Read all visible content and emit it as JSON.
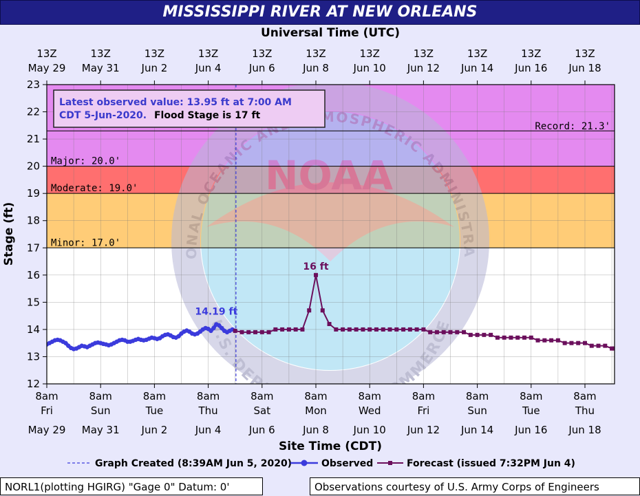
{
  "chart_data": {
    "type": "line",
    "title": "MISSISSIPPI RIVER AT NEW ORLEANS",
    "top_axis_title": "Universal Time (UTC)",
    "top_ticks": [
      {
        "hour": "13Z",
        "date": "May 29"
      },
      {
        "hour": "13Z",
        "date": "May 31"
      },
      {
        "hour": "13Z",
        "date": "Jun  2"
      },
      {
        "hour": "13Z",
        "date": "Jun  4"
      },
      {
        "hour": "13Z",
        "date": "Jun  6"
      },
      {
        "hour": "13Z",
        "date": "Jun  8"
      },
      {
        "hour": "13Z",
        "date": "Jun 10"
      },
      {
        "hour": "13Z",
        "date": "Jun 12"
      },
      {
        "hour": "13Z",
        "date": "Jun 14"
      },
      {
        "hour": "13Z",
        "date": "Jun 16"
      },
      {
        "hour": "13Z",
        "date": "Jun 18"
      }
    ],
    "bottom_ticks": [
      {
        "time": "8am",
        "day": "Fri",
        "date": "May 29"
      },
      {
        "time": "8am",
        "day": "Sun",
        "date": "May 31"
      },
      {
        "time": "8am",
        "day": "Tue",
        "date": "Jun  2"
      },
      {
        "time": "8am",
        "day": "Thu",
        "date": "Jun  4"
      },
      {
        "time": "8am",
        "day": "Sat",
        "date": "Jun  6"
      },
      {
        "time": "8am",
        "day": "Mon",
        "date": "Jun  8"
      },
      {
        "time": "8am",
        "day": "Wed",
        "date": "Jun 10"
      },
      {
        "time": "8am",
        "day": "Fri",
        "date": "Jun 12"
      },
      {
        "time": "8am",
        "day": "Sun",
        "date": "Jun 14"
      },
      {
        "time": "8am",
        "day": "Tue",
        "date": "Jun 16"
      },
      {
        "time": "8am",
        "day": "Thu",
        "date": "Jun 18"
      }
    ],
    "xlabel": "Site Time (CDT)",
    "ylabel": "Stage (ft)",
    "ylim": [
      12,
      23
    ],
    "yticks": [
      12,
      13,
      14,
      15,
      16,
      17,
      18,
      19,
      20,
      21,
      22,
      23
    ],
    "xlim_days": [
      0,
      21.1
    ],
    "grid": true,
    "flood_categories": [
      {
        "name": "Minor",
        "label": "Minor: 17.0'",
        "from": 17,
        "to": 19,
        "color": "#ffcc77"
      },
      {
        "name": "Moderate",
        "label": "Moderate: 19.0'",
        "from": 19,
        "to": 20,
        "color": "#ff6f6f"
      },
      {
        "name": "Major",
        "label": "Major: 20.0'",
        "from": 20,
        "to": 23,
        "color": "#e48af0"
      }
    ],
    "record": {
      "label": "Record: 21.3'",
      "value": 21.3
    },
    "graph_created_day": 7.03,
    "observed_peak_label": "14.19 ft",
    "observed_peak": {
      "day": 6.3,
      "value": 14.19
    },
    "forecast_peak_label": "16 ft",
    "forecast_peak": {
      "day": 10.0,
      "value": 16.0
    },
    "series": [
      {
        "name": "Observed",
        "color": "#3b3bdc",
        "points": [
          [
            0.0,
            13.45
          ],
          [
            0.1,
            13.5
          ],
          [
            0.2,
            13.55
          ],
          [
            0.3,
            13.6
          ],
          [
            0.4,
            13.62
          ],
          [
            0.5,
            13.6
          ],
          [
            0.6,
            13.55
          ],
          [
            0.7,
            13.5
          ],
          [
            0.8,
            13.4
          ],
          [
            0.9,
            13.32
          ],
          [
            1.0,
            13.28
          ],
          [
            1.1,
            13.3
          ],
          [
            1.2,
            13.35
          ],
          [
            1.3,
            13.4
          ],
          [
            1.4,
            13.38
          ],
          [
            1.5,
            13.35
          ],
          [
            1.6,
            13.4
          ],
          [
            1.7,
            13.45
          ],
          [
            1.8,
            13.5
          ],
          [
            1.9,
            13.52
          ],
          [
            2.0,
            13.5
          ],
          [
            2.1,
            13.47
          ],
          [
            2.2,
            13.45
          ],
          [
            2.3,
            13.42
          ],
          [
            2.4,
            13.45
          ],
          [
            2.5,
            13.5
          ],
          [
            2.6,
            13.55
          ],
          [
            2.7,
            13.6
          ],
          [
            2.8,
            13.62
          ],
          [
            2.9,
            13.6
          ],
          [
            3.0,
            13.55
          ],
          [
            3.1,
            13.55
          ],
          [
            3.2,
            13.58
          ],
          [
            3.3,
            13.62
          ],
          [
            3.4,
            13.65
          ],
          [
            3.5,
            13.62
          ],
          [
            3.6,
            13.6
          ],
          [
            3.7,
            13.62
          ],
          [
            3.8,
            13.66
          ],
          [
            3.9,
            13.7
          ],
          [
            4.0,
            13.68
          ],
          [
            4.1,
            13.65
          ],
          [
            4.2,
            13.68
          ],
          [
            4.3,
            13.75
          ],
          [
            4.4,
            13.8
          ],
          [
            4.5,
            13.82
          ],
          [
            4.6,
            13.78
          ],
          [
            4.7,
            13.72
          ],
          [
            4.8,
            13.7
          ],
          [
            4.9,
            13.75
          ],
          [
            5.0,
            13.85
          ],
          [
            5.1,
            13.92
          ],
          [
            5.2,
            13.96
          ],
          [
            5.3,
            13.92
          ],
          [
            5.4,
            13.85
          ],
          [
            5.5,
            13.82
          ],
          [
            5.6,
            13.85
          ],
          [
            5.7,
            13.92
          ],
          [
            5.8,
            14.0
          ],
          [
            5.9,
            14.05
          ],
          [
            6.0,
            14.02
          ],
          [
            6.1,
            13.95
          ],
          [
            6.2,
            14.05
          ],
          [
            6.3,
            14.19
          ],
          [
            6.4,
            14.15
          ],
          [
            6.5,
            14.05
          ],
          [
            6.6,
            13.95
          ],
          [
            6.7,
            13.9
          ],
          [
            6.8,
            13.95
          ],
          [
            6.9,
            14.0
          ],
          [
            7.0,
            13.95
          ]
        ]
      },
      {
        "name": "Forecast",
        "color": "#6b0f5c",
        "points": [
          [
            7.0,
            13.95
          ],
          [
            7.25,
            13.9
          ],
          [
            7.5,
            13.9
          ],
          [
            7.75,
            13.9
          ],
          [
            8.0,
            13.9
          ],
          [
            8.25,
            13.9
          ],
          [
            8.5,
            14.0
          ],
          [
            8.75,
            14.0
          ],
          [
            9.0,
            14.0
          ],
          [
            9.25,
            14.0
          ],
          [
            9.5,
            14.0
          ],
          [
            9.75,
            14.7
          ],
          [
            10.0,
            16.0
          ],
          [
            10.25,
            14.7
          ],
          [
            10.5,
            14.2
          ],
          [
            10.75,
            14.0
          ],
          [
            11.0,
            14.0
          ],
          [
            11.25,
            14.0
          ],
          [
            11.5,
            14.0
          ],
          [
            11.75,
            14.0
          ],
          [
            12.0,
            14.0
          ],
          [
            12.25,
            14.0
          ],
          [
            12.5,
            14.0
          ],
          [
            12.75,
            14.0
          ],
          [
            13.0,
            14.0
          ],
          [
            13.25,
            14.0
          ],
          [
            13.5,
            14.0
          ],
          [
            13.75,
            14.0
          ],
          [
            14.0,
            14.0
          ],
          [
            14.25,
            13.9
          ],
          [
            14.5,
            13.9
          ],
          [
            14.75,
            13.9
          ],
          [
            15.0,
            13.9
          ],
          [
            15.25,
            13.9
          ],
          [
            15.5,
            13.9
          ],
          [
            15.75,
            13.8
          ],
          [
            16.0,
            13.8
          ],
          [
            16.25,
            13.8
          ],
          [
            16.5,
            13.8
          ],
          [
            16.75,
            13.7
          ],
          [
            17.0,
            13.7
          ],
          [
            17.25,
            13.7
          ],
          [
            17.5,
            13.7
          ],
          [
            17.75,
            13.7
          ],
          [
            18.0,
            13.7
          ],
          [
            18.25,
            13.6
          ],
          [
            18.5,
            13.6
          ],
          [
            18.75,
            13.6
          ],
          [
            19.0,
            13.6
          ],
          [
            19.25,
            13.5
          ],
          [
            19.5,
            13.5
          ],
          [
            19.75,
            13.5
          ],
          [
            20.0,
            13.5
          ],
          [
            20.25,
            13.4
          ],
          [
            20.5,
            13.4
          ],
          [
            20.75,
            13.4
          ],
          [
            21.0,
            13.3
          ],
          [
            21.1,
            13.3
          ]
        ]
      }
    ],
    "legend": {
      "graph_created": "Graph Created (8:39AM Jun 5, 2020)",
      "observed": "Observed",
      "forecast": "Forecast (issued 7:32PM Jun 4)"
    },
    "infobox": {
      "line1": "Latest observed value: 13.95 ft at 7:00 AM",
      "line2_part1": "CDT 5-Jun-2020.",
      "line2_part2": "Flood Stage is 17 ft"
    },
    "watermark": {
      "center": "NOAA",
      "ring_top": "NATIONAL OCEANIC AND ATMOSPHERIC ADMINISTRATION",
      "ring_bottom": "U.S. DEPARTMENT OF COMMERCE"
    }
  },
  "footer": {
    "left": "NORL1(plotting HGIRG) \"Gage 0\" Datum: 0'",
    "right": "Observations courtesy of U.S. Army Corps of Engineers"
  }
}
